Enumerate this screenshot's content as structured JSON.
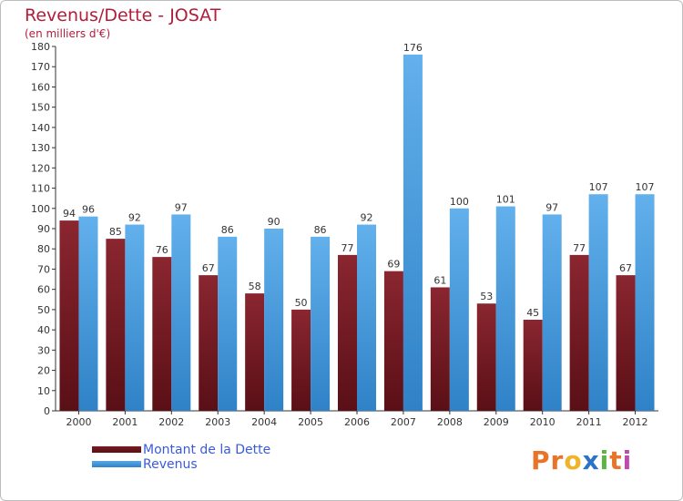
{
  "header": {
    "title": "Revenus/Dette - JOSAT",
    "subtitle": "(en milliers d'€)"
  },
  "colors": {
    "dette": "#7a1a22",
    "dette_dark": "#5a0f16",
    "revenus": "#59a9e6",
    "revenus_dark": "#2f82c7",
    "title": "#b01e3c",
    "legend_text": "#3a5bd9"
  },
  "chart_data": {
    "type": "bar",
    "categories": [
      "2000",
      "2001",
      "2002",
      "2003",
      "2004",
      "2005",
      "2006",
      "2007",
      "2008",
      "2009",
      "2010",
      "2011",
      "2012"
    ],
    "series": [
      {
        "name": "Montant de la Dette",
        "values": [
          94,
          85,
          76,
          67,
          58,
          50,
          77,
          69,
          61,
          53,
          45,
          77,
          67
        ]
      },
      {
        "name": "Revenus",
        "values": [
          96,
          92,
          97,
          86,
          90,
          86,
          92,
          176,
          100,
          101,
          97,
          107,
          107
        ]
      }
    ],
    "ylim": [
      0,
      180
    ],
    "yticks": [
      0,
      10,
      20,
      30,
      40,
      50,
      60,
      70,
      80,
      90,
      100,
      110,
      120,
      130,
      140,
      150,
      160,
      170,
      180
    ],
    "grid": false,
    "legend": "bottom-left"
  },
  "logo": {
    "letters": [
      "P",
      "r",
      "o",
      "x",
      "i",
      "t",
      "i"
    ],
    "colors": [
      "#e8742a",
      "#e8742a",
      "#f0b429",
      "#2b72c9",
      "#5bb543",
      "#e8742a",
      "#c04bb0"
    ]
  }
}
